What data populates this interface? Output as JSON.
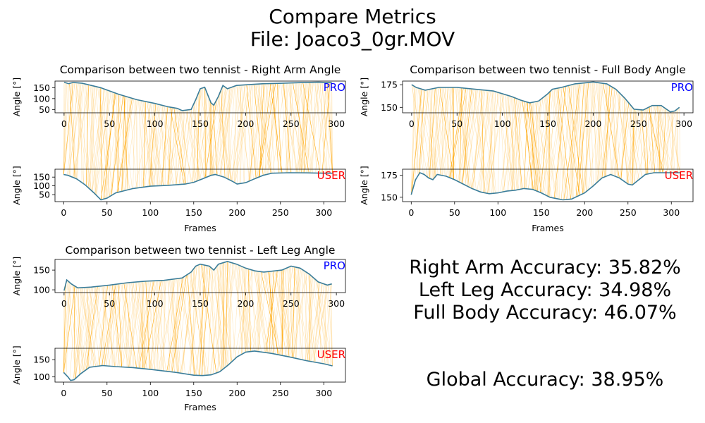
{
  "figure": {
    "title_line1": "Compare Metrics",
    "title_line2": "File: Joaco3_0gr.MOV"
  },
  "accuracy": {
    "right_arm": "Right Arm Accuracy: 35.82%",
    "left_leg": "Left Leg Accuracy: 34.98%",
    "full_body": "Full Body Accuracy: 46.07%",
    "global": "Global Accuracy: 38.95%"
  },
  "colors": {
    "curve": "#3a7d9a",
    "link": "#ffa500",
    "pro_label": "#0000ff",
    "user_label": "#ff0000"
  },
  "chart_data": [
    {
      "type": "line",
      "title": "Comparison between two tennist - Right Arm Angle",
      "xlabel": "Frames",
      "ylabel": "Angle [°]",
      "pro": {
        "label": "PRO",
        "xlim": [
          -10,
          310
        ],
        "ylim": [
          35,
          180
        ],
        "yticks": [
          50,
          100,
          150
        ],
        "points": [
          [
            0,
            175
          ],
          [
            5,
            168
          ],
          [
            10,
            174
          ],
          [
            20,
            170
          ],
          [
            30,
            160
          ],
          [
            40,
            150
          ],
          [
            60,
            120
          ],
          [
            80,
            95
          ],
          [
            100,
            78
          ],
          [
            115,
            62
          ],
          [
            125,
            55
          ],
          [
            130,
            45
          ],
          [
            140,
            50
          ],
          [
            145,
            95
          ],
          [
            150,
            145
          ],
          [
            155,
            152
          ],
          [
            158,
            120
          ],
          [
            162,
            80
          ],
          [
            165,
            70
          ],
          [
            170,
            110
          ],
          [
            175,
            160
          ],
          [
            180,
            145
          ],
          [
            190,
            160
          ],
          [
            200,
            163
          ],
          [
            220,
            168
          ],
          [
            240,
            170
          ],
          [
            260,
            173
          ],
          [
            280,
            175
          ],
          [
            295,
            173
          ]
        ]
      },
      "user": {
        "label": "USER",
        "xlim": [
          -10,
          325
        ],
        "ylim": [
          10,
          195
        ],
        "yticks": [
          50,
          100,
          150
        ],
        "points": [
          [
            0,
            165
          ],
          [
            5,
            160
          ],
          [
            15,
            140
          ],
          [
            25,
            105
          ],
          [
            35,
            60
          ],
          [
            40,
            35
          ],
          [
            43,
            20
          ],
          [
            50,
            30
          ],
          [
            60,
            60
          ],
          [
            80,
            85
          ],
          [
            100,
            98
          ],
          [
            120,
            103
          ],
          [
            140,
            110
          ],
          [
            150,
            120
          ],
          [
            160,
            140
          ],
          [
            170,
            160
          ],
          [
            175,
            165
          ],
          [
            185,
            150
          ],
          [
            195,
            125
          ],
          [
            200,
            110
          ],
          [
            210,
            118
          ],
          [
            220,
            140
          ],
          [
            230,
            160
          ],
          [
            240,
            172
          ],
          [
            260,
            175
          ],
          [
            280,
            174
          ],
          [
            300,
            172
          ],
          [
            310,
            172
          ]
        ]
      },
      "xticks": [
        0,
        50,
        100,
        150,
        200,
        250,
        300
      ]
    },
    {
      "type": "line",
      "title": "Comparison between two tennist - Full Body Angle",
      "xlabel": "Frames",
      "ylabel": "Angle [°]",
      "pro": {
        "label": "PRO",
        "xlim": [
          -10,
          310
        ],
        "ylim": [
          144,
          179
        ],
        "yticks": [
          150,
          175
        ],
        "points": [
          [
            0,
            175
          ],
          [
            5,
            172
          ],
          [
            15,
            169
          ],
          [
            30,
            172
          ],
          [
            50,
            172
          ],
          [
            70,
            170
          ],
          [
            90,
            168
          ],
          [
            110,
            162
          ],
          [
            120,
            158
          ],
          [
            130,
            155
          ],
          [
            140,
            157
          ],
          [
            150,
            165
          ],
          [
            155,
            170
          ],
          [
            165,
            172
          ],
          [
            180,
            176
          ],
          [
            200,
            178
          ],
          [
            215,
            176
          ],
          [
            225,
            170
          ],
          [
            235,
            160
          ],
          [
            245,
            148
          ],
          [
            255,
            147
          ],
          [
            265,
            152
          ],
          [
            275,
            152
          ],
          [
            285,
            145
          ],
          [
            290,
            146
          ],
          [
            295,
            150
          ]
        ]
      },
      "user": {
        "label": "USER",
        "xlim": [
          -10,
          325
        ],
        "ylim": [
          145,
          182
        ],
        "yticks": [
          150,
          175
        ],
        "points": [
          [
            0,
            153
          ],
          [
            5,
            170
          ],
          [
            10,
            178
          ],
          [
            15,
            176
          ],
          [
            20,
            172
          ],
          [
            25,
            170
          ],
          [
            30,
            176
          ],
          [
            40,
            174
          ],
          [
            50,
            170
          ],
          [
            60,
            165
          ],
          [
            70,
            160
          ],
          [
            80,
            156
          ],
          [
            90,
            154
          ],
          [
            100,
            155
          ],
          [
            110,
            157
          ],
          [
            120,
            158
          ],
          [
            130,
            160
          ],
          [
            140,
            159
          ],
          [
            150,
            155
          ],
          [
            160,
            150
          ],
          [
            170,
            148
          ],
          [
            175,
            147
          ],
          [
            185,
            148
          ],
          [
            200,
            155
          ],
          [
            210,
            163
          ],
          [
            220,
            172
          ],
          [
            230,
            176
          ],
          [
            240,
            172
          ],
          [
            250,
            165
          ],
          [
            255,
            164
          ],
          [
            260,
            168
          ],
          [
            270,
            176
          ],
          [
            280,
            178
          ],
          [
            300,
            178
          ],
          [
            310,
            178
          ]
        ]
      },
      "xticks": [
        0,
        50,
        100,
        150,
        200,
        250,
        300
      ]
    },
    {
      "type": "line",
      "title": "Comparison between two tennist - Left Leg Angle",
      "xlabel": "Frames",
      "ylabel": "Angle [°]",
      "pro": {
        "label": "PRO",
        "xlim": [
          -10,
          310
        ],
        "ylim": [
          93,
          177
        ],
        "yticks": [
          100,
          150
        ],
        "points": [
          [
            0,
            98
          ],
          [
            3,
            125
          ],
          [
            8,
            115
          ],
          [
            15,
            105
          ],
          [
            30,
            107
          ],
          [
            50,
            112
          ],
          [
            70,
            118
          ],
          [
            90,
            122
          ],
          [
            110,
            124
          ],
          [
            130,
            130
          ],
          [
            140,
            145
          ],
          [
            145,
            160
          ],
          [
            150,
            165
          ],
          [
            160,
            160
          ],
          [
            165,
            150
          ],
          [
            170,
            165
          ],
          [
            180,
            172
          ],
          [
            190,
            165
          ],
          [
            200,
            155
          ],
          [
            210,
            148
          ],
          [
            220,
            145
          ],
          [
            240,
            150
          ],
          [
            250,
            160
          ],
          [
            260,
            155
          ],
          [
            270,
            140
          ],
          [
            280,
            120
          ],
          [
            290,
            112
          ],
          [
            295,
            115
          ]
        ]
      },
      "user": {
        "label": "USER",
        "xlim": [
          -10,
          325
        ],
        "ylim": [
          85,
          183
        ],
        "yticks": [
          100,
          150
        ],
        "points": [
          [
            0,
            113
          ],
          [
            5,
            100
          ],
          [
            8,
            90
          ],
          [
            12,
            92
          ],
          [
            20,
            110
          ],
          [
            30,
            128
          ],
          [
            45,
            133
          ],
          [
            60,
            130
          ],
          [
            80,
            127
          ],
          [
            100,
            122
          ],
          [
            130,
            113
          ],
          [
            150,
            105
          ],
          [
            160,
            104
          ],
          [
            170,
            106
          ],
          [
            180,
            115
          ],
          [
            190,
            135
          ],
          [
            200,
            158
          ],
          [
            210,
            172
          ],
          [
            220,
            175
          ],
          [
            240,
            168
          ],
          [
            260,
            158
          ],
          [
            280,
            147
          ],
          [
            300,
            138
          ],
          [
            310,
            132
          ]
        ]
      },
      "xticks": [
        0,
        50,
        100,
        150,
        200,
        250,
        300
      ]
    }
  ]
}
